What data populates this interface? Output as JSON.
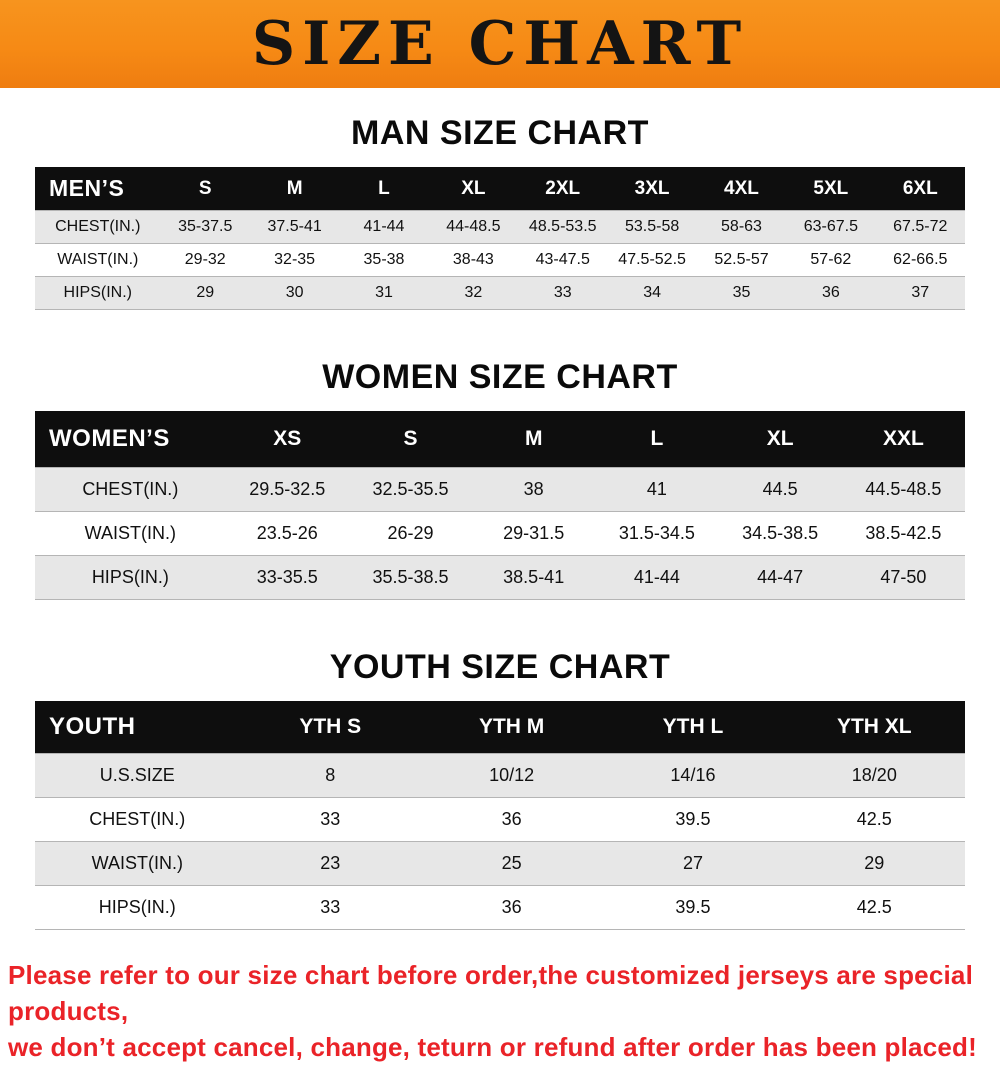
{
  "banner": {
    "title": "SIZE CHART"
  },
  "colors": {
    "banner_bg": "#f68a15",
    "header_bg": "#0e0e0e",
    "row_stripe": "#e7e7e7",
    "footer_text": "#ea2328"
  },
  "sections": [
    {
      "heading": "MAN SIZE CHART",
      "table": {
        "header": [
          "MEN’S",
          "S",
          "M",
          "L",
          "XL",
          "2XL",
          "3XL",
          "4XL",
          "5XL",
          "6XL"
        ],
        "rows": [
          [
            "CHEST(IN.)",
            "35-37.5",
            "37.5-41",
            "41-44",
            "44-48.5",
            "48.5-53.5",
            "53.5-58",
            "58-63",
            "63-67.5",
            "67.5-72"
          ],
          [
            "WAIST(IN.)",
            "29-32",
            "32-35",
            "35-38",
            "38-43",
            "43-47.5",
            "47.5-52.5",
            "52.5-57",
            "57-62",
            "62-66.5"
          ],
          [
            "HIPS(IN.)",
            "29",
            "30",
            "31",
            "32",
            "33",
            "34",
            "35",
            "36",
            "37"
          ]
        ]
      }
    },
    {
      "heading": "WOMEN SIZE CHART",
      "table": {
        "header": [
          "WOMEN’S",
          "XS",
          "S",
          "M",
          "L",
          "XL",
          "XXL"
        ],
        "rows": [
          [
            "CHEST(IN.)",
            "29.5-32.5",
            "32.5-35.5",
            "38",
            "41",
            "44.5",
            "44.5-48.5"
          ],
          [
            "WAIST(IN.)",
            "23.5-26",
            "26-29",
            "29-31.5",
            "31.5-34.5",
            "34.5-38.5",
            "38.5-42.5"
          ],
          [
            "HIPS(IN.)",
            "33-35.5",
            "35.5-38.5",
            "38.5-41",
            "41-44",
            "44-47",
            "47-50"
          ]
        ]
      }
    },
    {
      "heading": "YOUTH SIZE CHART",
      "table": {
        "header": [
          "YOUTH",
          "YTH S",
          "YTH M",
          "YTH L",
          "YTH XL"
        ],
        "rows": [
          [
            "U.S.SIZE",
            "8",
            "10/12",
            "14/16",
            "18/20"
          ],
          [
            "CHEST(IN.)",
            "33",
            "36",
            "39.5",
            "42.5"
          ],
          [
            "WAIST(IN.)",
            "23",
            "25",
            "27",
            "29"
          ],
          [
            "HIPS(IN.)",
            "33",
            "36",
            "39.5",
            "42.5"
          ]
        ]
      }
    }
  ],
  "footer": {
    "lines": [
      "Please refer to our size chart before order,the customized jerseys are special products,",
      "we don’t accept cancel, change, teturn or refund after order has been placed!"
    ]
  }
}
